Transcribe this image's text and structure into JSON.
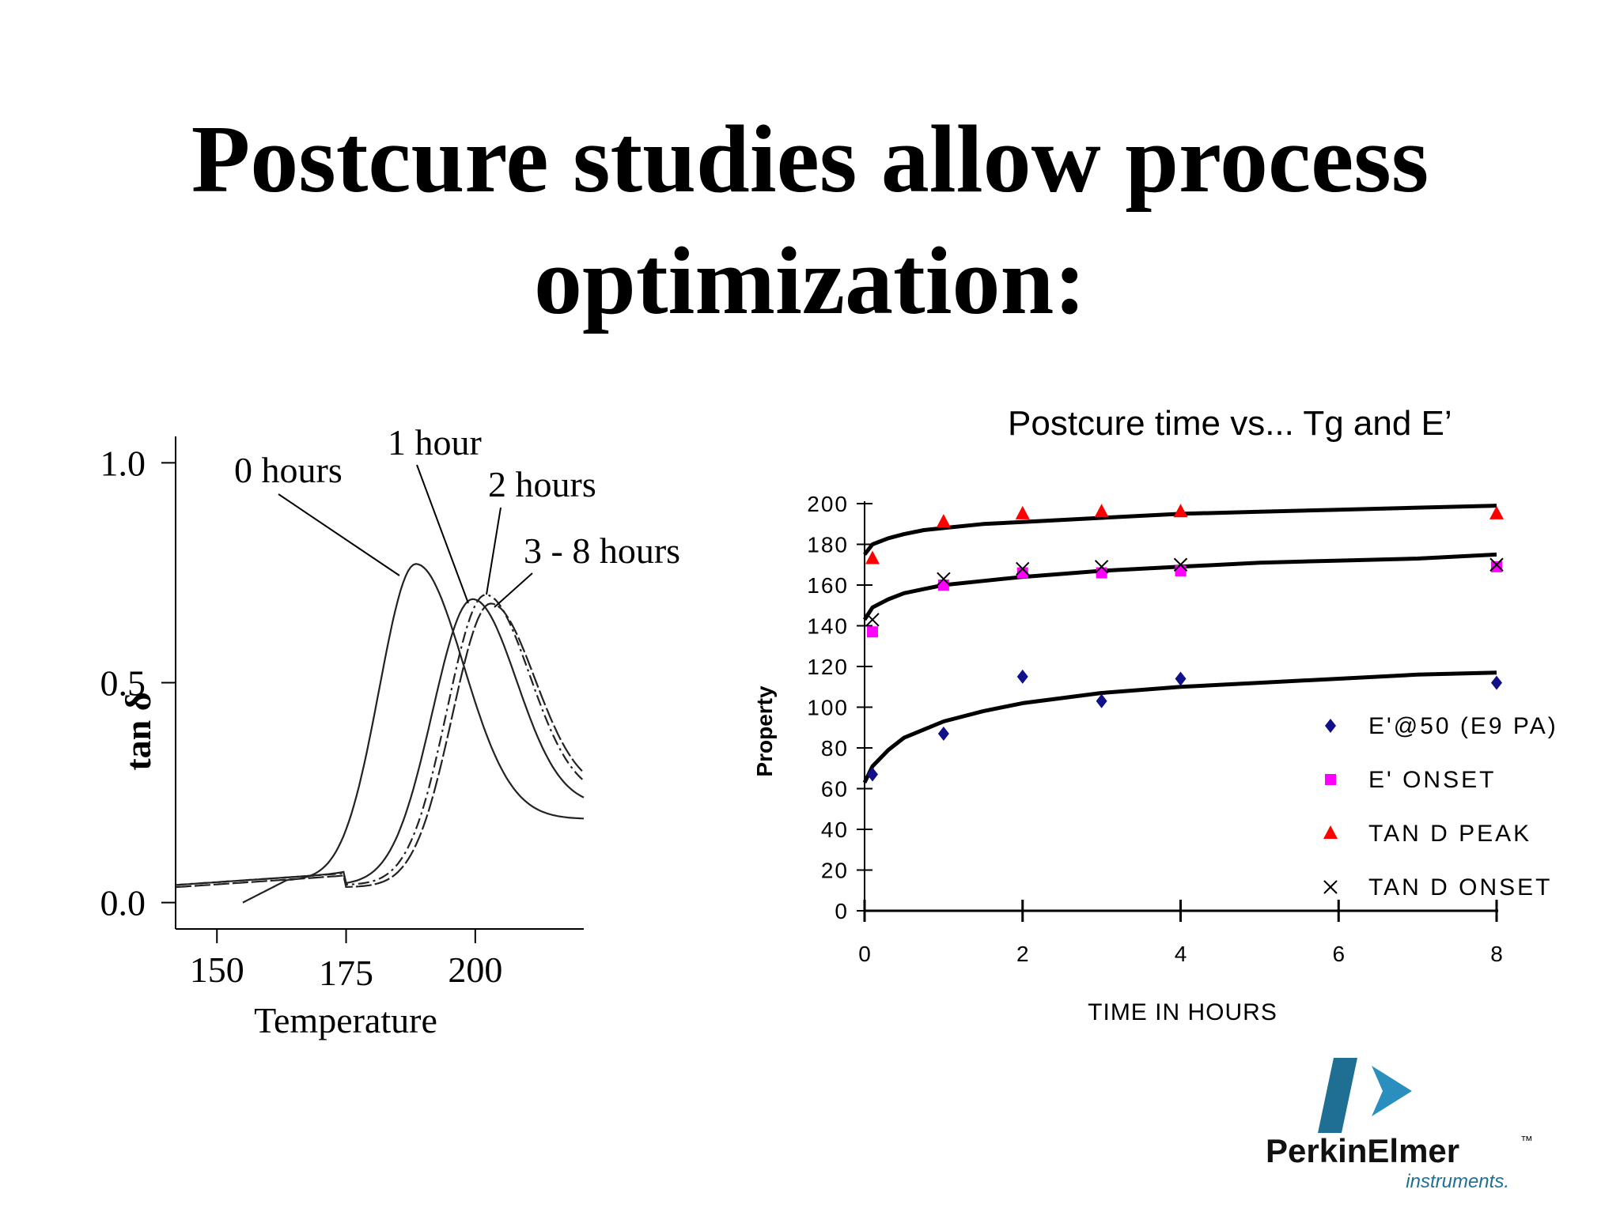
{
  "slide": {
    "title_line1": "Postcure studies allow process",
    "title_line2": "optimization:"
  },
  "logo": {
    "brand": "PerkinElmer",
    "tm": "™",
    "subtitle": "instruments.",
    "colors": {
      "bar": "#1f6f95",
      "arrow": "#2a8fbf",
      "text": "#111111"
    }
  },
  "chart_data": [
    {
      "type": "line",
      "title": "",
      "xlabel": "Temperature",
      "ylabel": "tan δ",
      "xlim": [
        142,
        221
      ],
      "ylim": [
        -0.06,
        1.06
      ],
      "x_ticks": [
        "150",
        "175",
        "200"
      ],
      "x_tick_values": [
        150,
        175,
        200
      ],
      "y_ticks": [
        "0.0",
        "0.5",
        "1.0"
      ],
      "y_tick_values": [
        0.0,
        0.5,
        1.0
      ],
      "annotations": [
        "0 hours",
        "1 hour",
        "2 hours",
        "3 - 8 hours"
      ],
      "series": [
        {
          "name": "0 hours",
          "peak_x": 188.5,
          "peak_y": 0.77,
          "width_left": 10,
          "width_right": 13,
          "base": 0.05,
          "tail": 0.19,
          "start_x": 155
        },
        {
          "name": "1 hour",
          "peak_x": 199.5,
          "peak_y": 0.69,
          "width_left": 11,
          "width_right": 12,
          "base": 0.04,
          "tail": 0.22,
          "start_x": 142
        },
        {
          "name": "2 hours",
          "peak_x": 202.0,
          "peak_y": 0.7,
          "width_left": 10.5,
          "width_right": 12,
          "base": 0.04,
          "tail": 0.24,
          "start_x": 142
        },
        {
          "name": "3 - 8 hours",
          "peak_x": 203.0,
          "peak_y": 0.68,
          "width_left": 10.5,
          "width_right": 12,
          "base": 0.035,
          "tail": 0.25,
          "start_x": 142
        }
      ]
    },
    {
      "type": "scatter",
      "title": "Postcure time vs... Tg and E’",
      "xlabel": "TIME IN HOURS",
      "ylabel": "Property",
      "xlim": [
        0,
        8
      ],
      "ylim": [
        0,
        200
      ],
      "x_ticks": [
        "0",
        "2",
        "4",
        "6",
        "8"
      ],
      "x_tick_values": [
        0,
        2,
        4,
        6,
        8
      ],
      "y_ticks": [
        "0",
        "20",
        "40",
        "60",
        "80",
        "100",
        "120",
        "140",
        "160",
        "180",
        "200"
      ],
      "y_tick_values": [
        0,
        20,
        40,
        60,
        80,
        100,
        120,
        140,
        160,
        180,
        200
      ],
      "legend_position": "right",
      "series": [
        {
          "name": "E'@50  (E9 PA)",
          "marker": "diamond",
          "color": "#10108a",
          "x": [
            0.1,
            1,
            2,
            3,
            4,
            8
          ],
          "y": [
            67,
            87,
            115,
            103,
            114,
            112
          ]
        },
        {
          "name": "E' ONSET",
          "marker": "square",
          "color": "#ff00ff",
          "x": [
            0.1,
            1,
            2,
            3,
            4,
            8
          ],
          "y": [
            137,
            160,
            166,
            166,
            167,
            169
          ]
        },
        {
          "name": "TAN D PEAK",
          "marker": "triangle",
          "color": "#ff0000",
          "x": [
            0.1,
            1,
            2,
            3,
            4,
            8
          ],
          "y": [
            173,
            191,
            195,
            196,
            196,
            195
          ]
        },
        {
          "name": "TAN D ONSET",
          "marker": "x",
          "color": "#000000",
          "x": [
            0.1,
            1,
            2,
            3,
            4,
            8
          ],
          "y": [
            143,
            163,
            168,
            169,
            170,
            170
          ]
        }
      ],
      "fit_lines": [
        {
          "name": "E' fit",
          "x": [
            0,
            0.1,
            0.3,
            0.5,
            0.75,
            1,
            1.5,
            2,
            3,
            4,
            5,
            6,
            7,
            8
          ],
          "y": [
            63,
            71,
            79,
            85,
            89,
            93,
            98,
            102,
            107,
            110,
            112,
            114,
            116,
            117
          ]
        },
        {
          "name": "Onset fit",
          "x": [
            0,
            0.1,
            0.3,
            0.5,
            0.75,
            1,
            1.5,
            2,
            3,
            4,
            5,
            6,
            7,
            8
          ],
          "y": [
            143,
            149,
            153,
            156,
            158,
            160,
            162,
            164,
            167,
            169,
            171,
            172,
            173,
            175
          ]
        },
        {
          "name": "Peak fit",
          "x": [
            0,
            0.1,
            0.3,
            0.5,
            0.75,
            1,
            1.5,
            2,
            3,
            4,
            5,
            6,
            7,
            8
          ],
          "y": [
            175,
            180,
            183,
            185,
            187,
            188,
            190,
            191,
            193,
            195,
            196,
            197,
            198,
            199
          ]
        }
      ]
    }
  ]
}
